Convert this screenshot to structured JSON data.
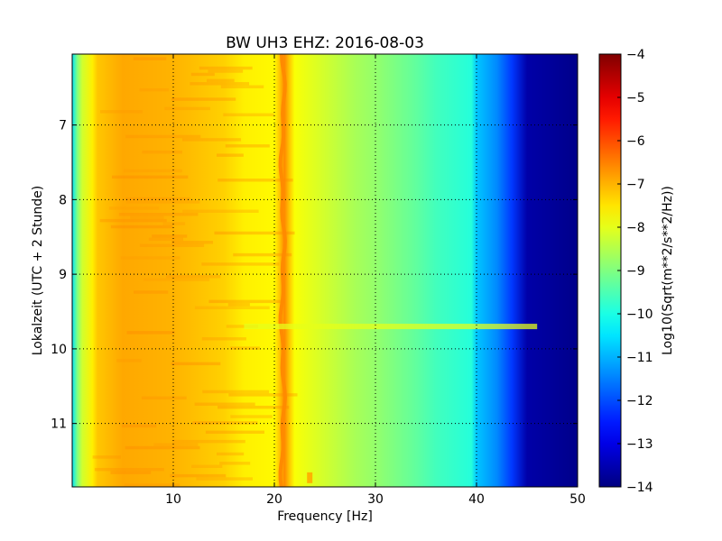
{
  "chart_data": {
    "type": "heatmap",
    "title": "BW UH3 EHZ: 2016-08-03",
    "xlabel": "Frequency [Hz]",
    "ylabel": "Lokalzeit (UTC + 2 Stunde)",
    "colorbar_label": "Log10(Sqrt(m**2/s**2/Hz))",
    "colormap": "jet",
    "xlim": [
      0,
      50
    ],
    "ylim": [
      11.85,
      6.05
    ],
    "y_inverted": true,
    "clim": [
      -14,
      -4
    ],
    "grid": true,
    "x_ticks": [
      10,
      20,
      30,
      40,
      50
    ],
    "x_tick_labels": [
      "10",
      "20",
      "30",
      "40",
      "50"
    ],
    "y_ticks": [
      7,
      8,
      9,
      10,
      11
    ],
    "y_tick_labels": [
      "7",
      "8",
      "9",
      "10",
      "11"
    ],
    "colorbar_ticks": [
      -4,
      -5,
      -6,
      -7,
      -8,
      -9,
      -10,
      -11,
      -12,
      -13,
      -14
    ],
    "colorbar_tick_labels": [
      "−4",
      "−5",
      "−6",
      "−7",
      "−8",
      "−9",
      "−10",
      "−11",
      "−12",
      "−13",
      "−14"
    ],
    "spectrum_profile": {
      "frequency_hz": [
        0,
        0.5,
        1,
        2,
        2.5,
        5,
        10,
        15,
        17,
        20,
        20.5,
        21,
        21.5,
        22,
        25,
        28,
        30,
        34,
        36,
        39.5,
        40,
        42,
        43.5,
        45,
        50
      ],
      "log10_amplitude": [
        -10.5,
        -9.0,
        -8.2,
        -7.6,
        -7.2,
        -6.9,
        -7.0,
        -7.3,
        -7.6,
        -7.7,
        -7.2,
        -6.6,
        -7.2,
        -7.8,
        -8.2,
        -8.6,
        -8.8,
        -9.3,
        -9.6,
        -9.9,
        -10.8,
        -11.4,
        -12.2,
        -13.6,
        -13.9
      ]
    },
    "features": {
      "spectral_line_hz": 21.0,
      "spectral_line_log10_amplitude": -6.6,
      "broadband_event_time": 9.7,
      "broadband_event_log10_amplitude": -8.0,
      "late_line_hz": 23.5,
      "late_line_time": 11.8
    }
  }
}
